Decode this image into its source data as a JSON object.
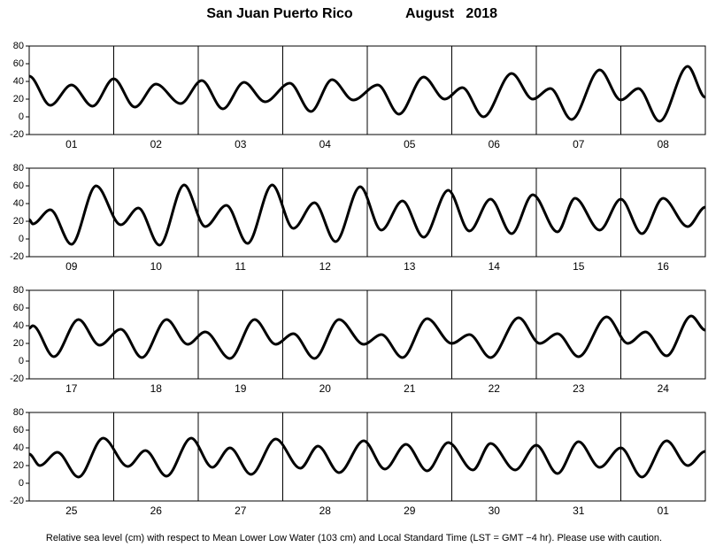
{
  "title": "San Juan Puerto Rico",
  "period": "August   2018",
  "note": "Relative sea level (cm) with respect to Mean Lower Low Water (103 cm) and Local Standard Time (LST = GMT −4 hr). Please use with caution.",
  "chart_data": [
    {
      "type": "line",
      "categories": [
        "01",
        "02",
        "03",
        "04",
        "05",
        "06",
        "07",
        "08"
      ],
      "x": [
        0,
        6,
        12,
        18,
        24,
        30,
        36,
        43,
        49,
        55,
        61,
        67,
        74,
        80,
        86,
        92,
        99,
        105,
        112,
        118,
        123,
        129,
        137,
        143,
        148,
        154,
        162,
        168,
        173,
        179,
        187,
        192
      ],
      "series": [
        {
          "color": "#000000",
          "values": [
            46,
            13,
            36,
            12,
            43,
            11,
            37,
            15,
            41,
            9,
            39,
            17,
            38,
            6,
            42,
            19,
            36,
            3,
            45,
            20,
            33,
            0,
            49,
            20,
            32,
            -3,
            53,
            19,
            32,
            -5,
            57,
            22
          ]
        }
      ],
      "xlim": [
        0,
        192
      ],
      "ylim": [
        -20,
        80
      ],
      "yticks": [
        -20,
        0,
        20,
        40,
        60,
        80
      ]
    },
    {
      "type": "line",
      "categories": [
        "09",
        "10",
        "11",
        "12",
        "13",
        "14",
        "15",
        "16"
      ],
      "x": [
        0,
        1,
        6,
        12,
        19,
        26,
        31,
        37,
        44,
        50,
        56,
        62,
        69,
        75,
        81,
        87,
        94,
        100,
        106,
        112,
        119,
        125,
        131,
        137,
        143,
        150,
        155,
        162,
        168,
        174,
        180,
        187,
        192
      ],
      "series": [
        {
          "color": "#000000",
          "values": [
            22,
            17,
            33,
            -6,
            60,
            16,
            35,
            -7,
            61,
            14,
            38,
            -5,
            61,
            12,
            41,
            -3,
            59,
            10,
            43,
            2,
            55,
            9,
            45,
            6,
            50,
            8,
            46,
            10,
            45,
            6,
            46,
            14,
            36
          ]
        }
      ],
      "xlim": [
        0,
        192
      ],
      "ylim": [
        -20,
        80
      ],
      "yticks": [
        -20,
        0,
        20,
        40,
        60,
        80
      ]
    },
    {
      "type": "line",
      "categories": [
        "17",
        "18",
        "19",
        "20",
        "21",
        "22",
        "23",
        "24"
      ],
      "x": [
        0,
        1,
        7,
        14,
        20,
        26,
        32,
        39,
        45,
        50,
        57,
        64,
        70,
        75,
        81,
        88,
        95,
        100,
        106,
        113,
        120,
        125,
        131,
        139,
        145,
        150,
        156,
        164,
        170,
        175,
        181,
        188,
        192
      ],
      "series": [
        {
          "color": "#000000",
          "values": [
            37,
            40,
            5,
            47,
            18,
            36,
            4,
            47,
            19,
            33,
            3,
            47,
            19,
            31,
            3,
            47,
            19,
            30,
            4,
            48,
            20,
            30,
            4,
            49,
            20,
            31,
            5,
            50,
            20,
            33,
            6,
            51,
            35
          ]
        }
      ],
      "xlim": [
        0,
        192
      ],
      "ylim": [
        -20,
        80
      ],
      "yticks": [
        -20,
        0,
        20,
        40,
        60,
        80
      ]
    },
    {
      "type": "line",
      "categories": [
        "25",
        "26",
        "27",
        "28",
        "29",
        "30",
        "31",
        "01"
      ],
      "x": [
        0,
        3,
        8,
        14,
        21,
        28,
        33,
        39,
        46,
        52,
        57,
        63,
        70,
        77,
        82,
        88,
        95,
        101,
        107,
        113,
        119,
        126,
        131,
        138,
        144,
        150,
        156,
        162,
        168,
        174,
        181,
        187,
        192
      ],
      "series": [
        {
          "color": "#000000",
          "values": [
            33,
            20,
            35,
            7,
            51,
            19,
            37,
            8,
            51,
            18,
            40,
            10,
            50,
            17,
            42,
            12,
            48,
            16,
            44,
            14,
            46,
            15,
            45,
            15,
            43,
            11,
            47,
            18,
            40,
            7,
            48,
            20,
            36
          ]
        }
      ],
      "xlim": [
        0,
        192
      ],
      "ylim": [
        -20,
        80
      ],
      "yticks": [
        -20,
        0,
        20,
        40,
        60,
        80
      ]
    }
  ]
}
